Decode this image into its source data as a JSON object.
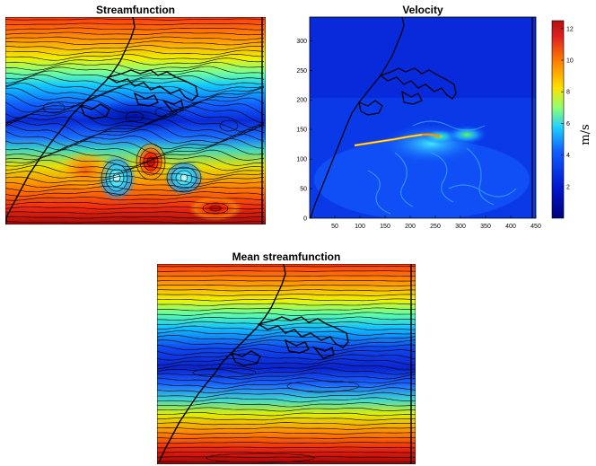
{
  "chart_data": [
    {
      "type": "heatmap",
      "title": "Streamfunction",
      "contours": true,
      "coastline": true
    },
    {
      "type": "heatmap",
      "title": "Velocity",
      "x_ticks": [
        "50",
        "100",
        "150",
        "200",
        "250",
        "300",
        "350",
        "400",
        "450"
      ],
      "y_ticks": [
        "0",
        "50",
        "100",
        "150",
        "200",
        "250",
        "300"
      ],
      "xlim": [
        0,
        450
      ],
      "ylim": [
        0,
        340
      ],
      "colorbar": {
        "label": "m/s",
        "ticks": [
          "2",
          "4",
          "6",
          "8",
          "10",
          "12"
        ],
        "range": [
          0,
          12.5
        ]
      },
      "coastline": true
    },
    {
      "type": "heatmap",
      "title": "Mean streamfunction",
      "contours": true,
      "coastline": true
    }
  ]
}
